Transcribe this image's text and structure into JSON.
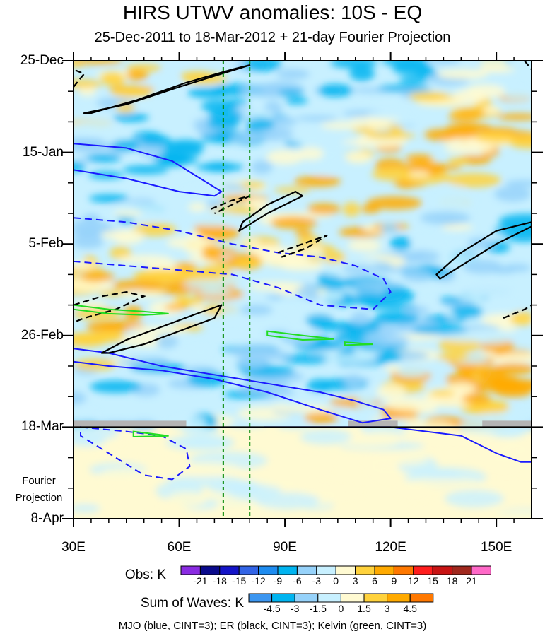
{
  "title": "HIRS UTWV anomalies: 10S - EQ",
  "subtitle": "25-Dec-2011 to 18-Mar-2012 + 21-day Fourier Projection",
  "colors": {
    "mjo": "#1a1aff",
    "er": "#000000",
    "kelvin": "#22dd22",
    "reference_lines": "#008800",
    "missing": "#b4b4b4"
  },
  "chart_data": {
    "type": "heatmap",
    "description_axis": "time-longitude (Hovmoller) diagram",
    "xlabel": "",
    "ylabel": "",
    "xlim": [
      30,
      160
    ],
    "x_ticks": [
      30,
      60,
      90,
      120,
      150
    ],
    "x_tick_labels": [
      "30E",
      "60E",
      "90E",
      "120E",
      "150E"
    ],
    "y_ticks_days": [
      0,
      21,
      42,
      63,
      84,
      105
    ],
    "y_tick_labels": [
      "25-Dec",
      "15-Jan",
      "5-Feb",
      "26-Feb",
      "18-Mar",
      "8-Apr"
    ],
    "ylim_days": [
      0,
      105
    ],
    "observation_end_day": 84,
    "projection_label_lines": [
      "Fourier",
      "Projection"
    ],
    "reference_longitudes": [
      72.5,
      80
    ],
    "obs_colorbar": {
      "title": "Obs: K",
      "levels": [
        -21,
        -18,
        -15,
        -12,
        -9,
        -6,
        -3,
        0,
        3,
        6,
        9,
        12,
        15,
        18,
        21
      ],
      "colors": [
        "#8a2be2",
        "#0a0a8c",
        "#1414c8",
        "#3264e6",
        "#1e8cf0",
        "#00b4f0",
        "#96d2fa",
        "#c8f0ff",
        "#fffad2",
        "#ffd23c",
        "#ffaa00",
        "#ff7800",
        "#ff1e1e",
        "#c81414",
        "#a0281e",
        "#ff69c8"
      ]
    },
    "waves_colorbar": {
      "title": "Sum of Waves: K",
      "levels": [
        -4.5,
        -3,
        -1.5,
        0,
        1.5,
        3,
        4.5
      ],
      "colors": [
        "#3c96f0",
        "#00b4f0",
        "#96d2fa",
        "#c8f0ff",
        "#fffad2",
        "#ffd23c",
        "#ffaa00",
        "#ff7800"
      ]
    },
    "contour_legend": "MJO (blue, CINT=3); ER (black, CINT=3); Kelvin (green, CINT=3)",
    "contours": {
      "mjo_negative": [
        [
          [
            30,
            19
          ],
          [
            45,
            20
          ],
          [
            58,
            23
          ],
          [
            66,
            27
          ],
          [
            72,
            30
          ],
          [
            70,
            31
          ],
          [
            60,
            30
          ],
          [
            45,
            27
          ],
          [
            30,
            25
          ]
        ],
        [
          [
            30,
            66
          ],
          [
            40,
            67
          ],
          [
            55,
            70
          ],
          [
            70,
            72
          ],
          [
            85,
            74
          ],
          [
            100,
            76
          ],
          [
            110,
            78
          ],
          [
            118,
            80
          ],
          [
            120,
            82
          ],
          [
            112,
            83
          ],
          [
            100,
            80
          ],
          [
            85,
            76
          ],
          [
            70,
            73
          ],
          [
            55,
            71
          ],
          [
            40,
            70
          ],
          [
            30,
            69
          ]
        ],
        [
          [
            84,
            84
          ],
          [
            100,
            84
          ],
          [
            120,
            84
          ],
          [
            140,
            86
          ],
          [
            150,
            90
          ],
          [
            157,
            92
          ],
          [
            160,
            92
          ]
        ]
      ],
      "mjo_positive": [
        [
          [
            30,
            36
          ],
          [
            45,
            37
          ],
          [
            60,
            39
          ],
          [
            75,
            42
          ],
          [
            88,
            44
          ],
          [
            100,
            45
          ],
          [
            110,
            47
          ],
          [
            118,
            50
          ],
          [
            120,
            53
          ],
          [
            115,
            57
          ],
          [
            100,
            56
          ],
          [
            88,
            52
          ],
          [
            75,
            49
          ],
          [
            60,
            48
          ],
          [
            45,
            47
          ],
          [
            30,
            46
          ]
        ],
        [
          [
            32,
            84
          ],
          [
            45,
            85
          ],
          [
            55,
            86
          ],
          [
            62,
            89
          ],
          [
            63,
            93
          ],
          [
            58,
            96
          ],
          [
            50,
            95
          ],
          [
            40,
            90
          ],
          [
            32,
            86
          ]
        ]
      ],
      "er_positive": [
        [
          [
            33,
            12
          ],
          [
            45,
            10
          ],
          [
            60,
            6
          ],
          [
            72,
            3
          ],
          [
            80,
            1
          ],
          [
            75,
            2
          ],
          [
            62,
            5
          ],
          [
            48,
            9
          ],
          [
            35,
            12
          ]
        ],
        [
          [
            77,
            39
          ],
          [
            85,
            35
          ],
          [
            95,
            31
          ],
          [
            93,
            30
          ],
          [
            85,
            33
          ],
          [
            78,
            37
          ]
        ],
        [
          [
            133,
            49
          ],
          [
            140,
            44
          ],
          [
            150,
            39
          ],
          [
            160,
            37
          ],
          [
            160,
            38
          ],
          [
            150,
            42
          ],
          [
            140,
            47
          ],
          [
            134,
            50
          ]
        ],
        [
          [
            38,
            67
          ],
          [
            45,
            64
          ],
          [
            55,
            61
          ],
          [
            65,
            58
          ],
          [
            72,
            56
          ],
          [
            70,
            59
          ],
          [
            60,
            62
          ],
          [
            50,
            65
          ],
          [
            40,
            67
          ]
        ]
      ],
      "er_negative": [
        [
          [
            30,
            6
          ],
          [
            33,
            3
          ],
          [
            30,
            2
          ]
        ],
        [
          [
            69,
            34
          ],
          [
            75,
            32
          ],
          [
            80,
            31
          ],
          [
            75,
            33
          ],
          [
            70,
            35
          ]
        ],
        [
          [
            88,
            44
          ],
          [
            95,
            42
          ],
          [
            102,
            40
          ],
          [
            96,
            43
          ],
          [
            89,
            45
          ]
        ],
        [
          [
            30,
            56
          ],
          [
            38,
            54
          ],
          [
            45,
            53
          ],
          [
            50,
            54
          ],
          [
            42,
            57
          ],
          [
            33,
            59
          ],
          [
            30,
            60
          ]
        ],
        [
          [
            152,
            59
          ],
          [
            158,
            57
          ],
          [
            160,
            56
          ]
        ],
        [
          [
            158,
            0
          ],
          [
            160,
            2
          ]
        ]
      ],
      "kelvin_positive": [
        [
          [
            30,
            56
          ],
          [
            40,
            57
          ],
          [
            50,
            57.5
          ],
          [
            57,
            58
          ],
          [
            50,
            58.3
          ],
          [
            40,
            58
          ],
          [
            30,
            57
          ]
        ],
        [
          [
            85,
            62
          ],
          [
            95,
            63
          ],
          [
            104,
            63.8
          ],
          [
            95,
            64
          ],
          [
            85,
            63
          ]
        ],
        [
          [
            107,
            64.5
          ],
          [
            115,
            65
          ],
          [
            107,
            65.2
          ]
        ],
        [
          [
            47,
            85
          ],
          [
            57,
            86
          ],
          [
            47,
            86.2
          ]
        ]
      ]
    },
    "missing_data_segments": [
      [
        30,
        62
      ],
      [
        108,
        122
      ],
      [
        146,
        160
      ]
    ]
  }
}
